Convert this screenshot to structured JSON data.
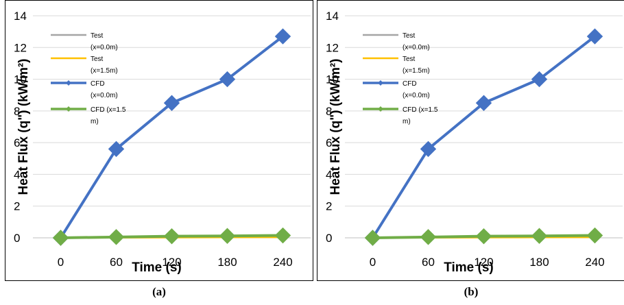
{
  "chart_data": [
    {
      "type": "line",
      "caption": "(a)",
      "xlabel": "Time (s)",
      "ylabel": "Heat Flux (q\") (kW/m²)",
      "x": [
        0,
        60,
        120,
        180,
        240
      ],
      "ylim": [
        0,
        14
      ],
      "yticks": [
        0,
        2,
        4,
        6,
        8,
        10,
        12,
        14
      ],
      "grid": true,
      "series": [
        {
          "name": "Test (x=0.0m)",
          "legend_lines": [
            "Test",
            "(x=0.0m)"
          ],
          "color": "#a5a5a5",
          "marker": "none",
          "values": [
            0,
            0.02,
            0.03,
            0.04,
            0.05
          ]
        },
        {
          "name": "Test (x=1.5m)",
          "legend_lines": [
            "Test",
            "(x=1.5m)"
          ],
          "color": "#ffc000",
          "marker": "none",
          "values": [
            0,
            0.01,
            0.02,
            0.03,
            0.04
          ]
        },
        {
          "name": "CFD (x=0.0m)",
          "legend_lines": [
            "CFD",
            "(x=0.0m)"
          ],
          "color": "#4472c4",
          "marker": "diamond",
          "values": [
            0,
            5.6,
            8.5,
            10.0,
            12.7
          ]
        },
        {
          "name": "CFD (x=1.5 m)",
          "legend_lines": [
            "CFD (x=1.5",
            "m)"
          ],
          "color": "#70ad47",
          "marker": "diamond",
          "values": [
            0,
            0.05,
            0.1,
            0.12,
            0.15
          ]
        }
      ]
    },
    {
      "type": "line",
      "caption": "(b)",
      "xlabel": "Time (s)",
      "ylabel": "Heat Flux (q\") (kW/m²)",
      "x": [
        0,
        60,
        120,
        180,
        240
      ],
      "ylim": [
        0,
        14
      ],
      "yticks": [
        0,
        2,
        4,
        6,
        8,
        10,
        12,
        14
      ],
      "grid": true,
      "series": [
        {
          "name": "Test (x=0.0m)",
          "legend_lines": [
            "Test",
            "(x=0.0m)"
          ],
          "color": "#a5a5a5",
          "marker": "none",
          "values": [
            0,
            0.02,
            0.03,
            0.04,
            0.05
          ]
        },
        {
          "name": "Test (x=1.5m)",
          "legend_lines": [
            "Test",
            "(x=1.5m)"
          ],
          "color": "#ffc000",
          "marker": "none",
          "values": [
            0,
            0.01,
            0.02,
            0.03,
            0.04
          ]
        },
        {
          "name": "CFD (x=0.0m)",
          "legend_lines": [
            "CFD",
            "(x=0.0m)"
          ],
          "color": "#4472c4",
          "marker": "diamond",
          "values": [
            0,
            5.6,
            8.5,
            10.0,
            12.7
          ]
        },
        {
          "name": "CFD (x=1.5 m)",
          "legend_lines": [
            "CFD (x=1.5",
            "m)"
          ],
          "color": "#70ad47",
          "marker": "diamond",
          "values": [
            0,
            0.05,
            0.1,
            0.12,
            0.15
          ]
        }
      ]
    }
  ]
}
